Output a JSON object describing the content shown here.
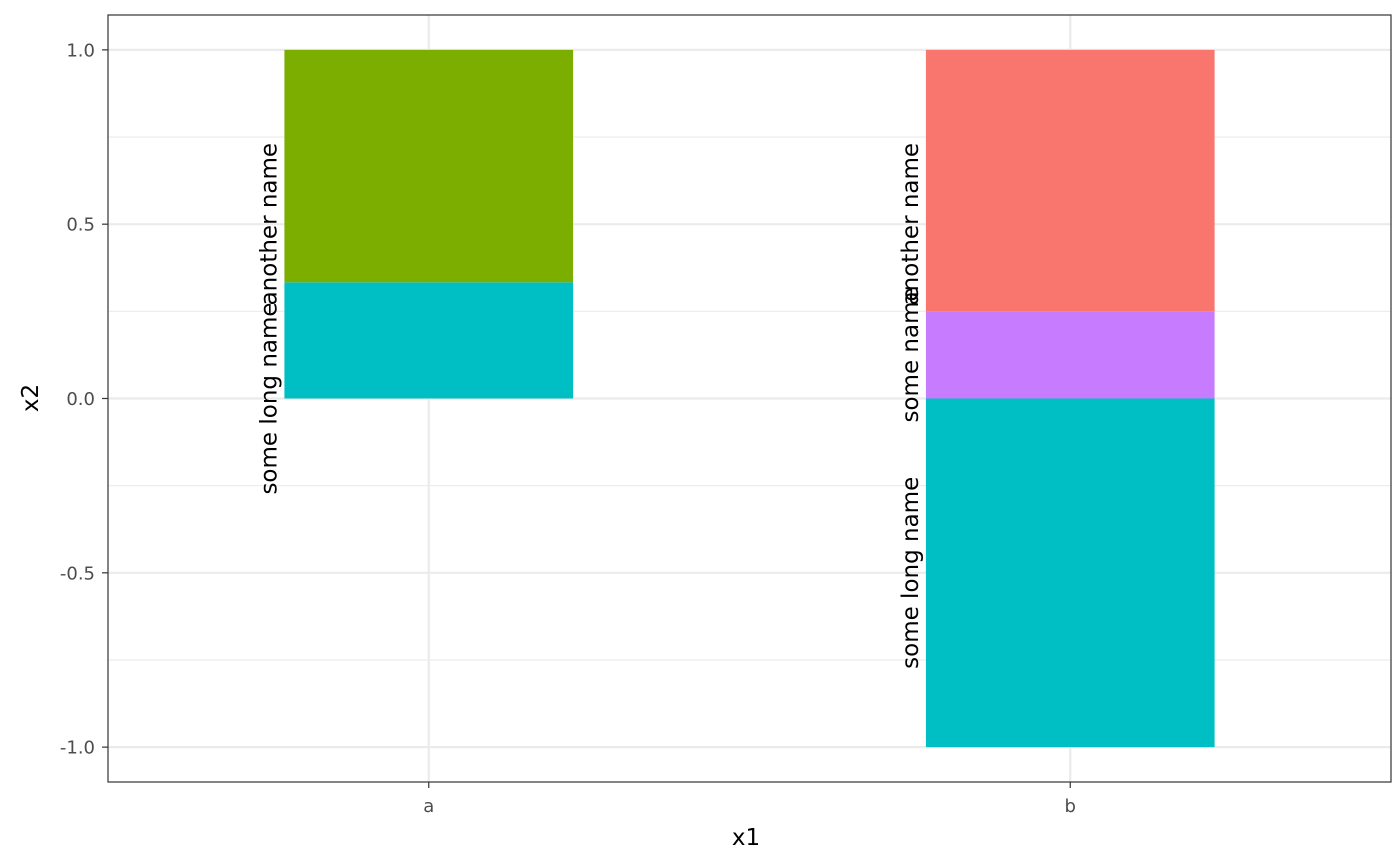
{
  "chart_data": {
    "type": "bar",
    "stacked": true,
    "title": "",
    "xlabel": "x1",
    "ylabel": "x2",
    "categories": [
      "a",
      "b"
    ],
    "ylim": [
      -1.1,
      1.1
    ],
    "y_ticks": [
      -1.0,
      -0.5,
      0.0,
      0.5,
      1.0
    ],
    "y_tick_labels": [
      "-1.0",
      "-0.5",
      "0.0",
      "0.5",
      "1.0"
    ],
    "grid": true,
    "legend": "none",
    "segments": [
      {
        "category": "a",
        "start": 0.0,
        "end": 0.3333,
        "color": "#00BFC4"
      },
      {
        "category": "a",
        "start": 0.3333,
        "end": 1.0,
        "color": "#7CAE00"
      },
      {
        "category": "b",
        "start": -1.0,
        "end": 0.0,
        "color": "#00BFC4"
      },
      {
        "category": "b",
        "start": 0.0,
        "end": 0.25,
        "color": "#C77CFF"
      },
      {
        "category": "b",
        "start": 0.25,
        "end": 1.0,
        "color": "#F8766D"
      }
    ],
    "labels": [
      {
        "category": "a",
        "text": "some long name",
        "y": 0.0
      },
      {
        "category": "a",
        "text": "another name",
        "y": 0.5
      },
      {
        "category": "b",
        "text": "some long name",
        "y": -0.5
      },
      {
        "category": "b",
        "text": "some name",
        "y": 0.125
      },
      {
        "category": "b",
        "text": "another name",
        "y": 0.5
      }
    ]
  }
}
